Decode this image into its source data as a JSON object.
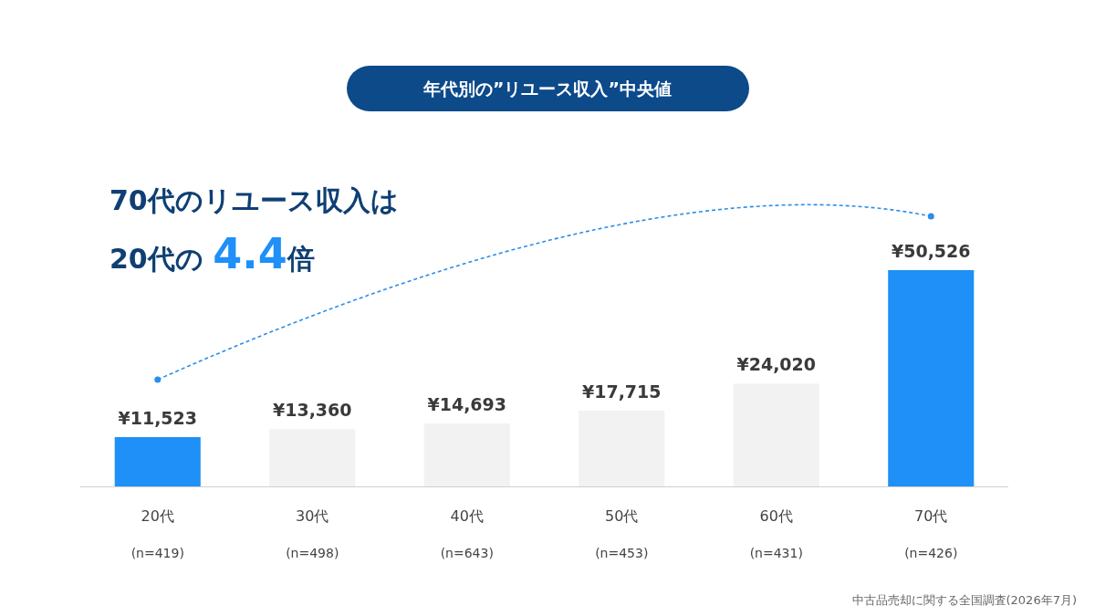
{
  "chart_data": {
    "type": "bar",
    "title": "年代別の”リユース収入”中央値",
    "subtitle": "70代のリユース収入は\n20代の 4.4倍",
    "categories": [
      "20代\n(n=419)",
      "30代\n(n=498)",
      "40代\n(n=643)",
      "50代\n(n=453)",
      "60代\n(n=431)",
      "70代\n(n=426)"
    ],
    "values": [
      11523,
      13360,
      14693,
      17715,
      24020,
      50526
    ],
    "value_labels": [
      "¥11,523",
      "¥13,360",
      "¥14,693",
      "¥17,715",
      "¥24,020",
      "¥50,526"
    ],
    "colors": [
      "#1e90f7",
      "#f2f2f2",
      "#f2f2f2",
      "#f2f2f2",
      "#f2f2f2",
      "#1e90f7"
    ],
    "annotations": [
      "中古品売却に関する全国調査(2026年7月)"
    ]
  }
}
